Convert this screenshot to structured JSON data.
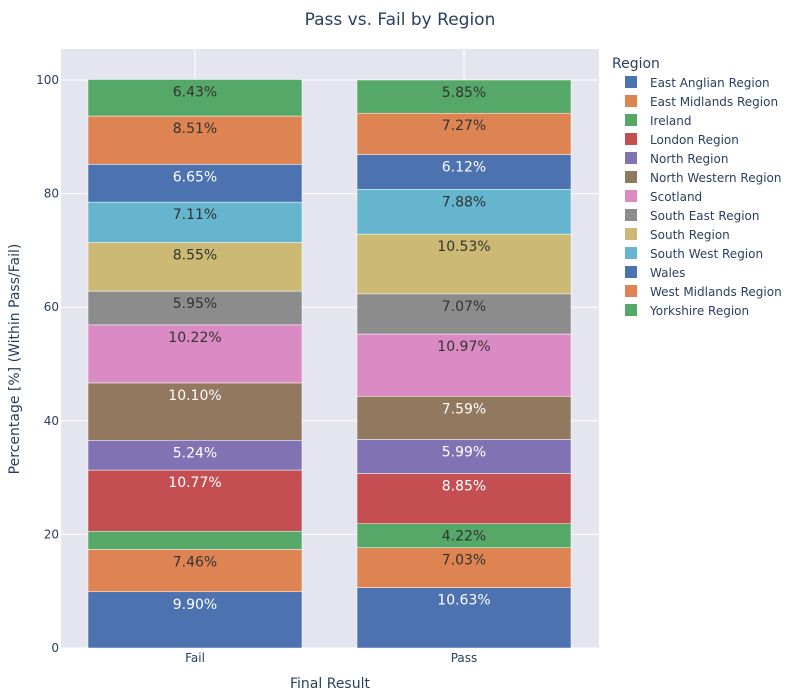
{
  "chart_data": {
    "type": "bar",
    "stacked": true,
    "title": "Pass vs. Fail by Region",
    "xlabel": "Final Result",
    "ylabel": "Percentage [%] (Within Pass/Fail)",
    "categories": [
      "Fail",
      "Pass"
    ],
    "ylim": [
      0,
      100
    ],
    "yticks": [
      0,
      20,
      40,
      60,
      80,
      100
    ],
    "grid": true,
    "legend_title": "Region",
    "legend_position": "right",
    "series": [
      {
        "name": "East Anglian Region",
        "color": "#4c72b0",
        "values": [
          9.9,
          10.63
        ],
        "labels": [
          "9.90%",
          "10.63%"
        ],
        "label_color": "#ffffff"
      },
      {
        "name": "East Midlands Region",
        "color": "#dd8452",
        "values": [
          7.46,
          7.03
        ],
        "labels": [
          "7.46%",
          "7.03%"
        ],
        "label_color": "#333333"
      },
      {
        "name": "Ireland",
        "color": "#55a868",
        "values": [
          3.2,
          4.22
        ],
        "labels": [
          "",
          "4.22%"
        ],
        "label_color": "#333333"
      },
      {
        "name": "London Region",
        "color": "#c44e52",
        "values": [
          10.77,
          8.85
        ],
        "labels": [
          "10.77%",
          "8.85%"
        ],
        "label_color": "#ffffff"
      },
      {
        "name": "North Region",
        "color": "#8172b3",
        "values": [
          5.24,
          5.99
        ],
        "labels": [
          "5.24%",
          "5.99%"
        ],
        "label_color": "#ffffff"
      },
      {
        "name": "North Western Region",
        "color": "#937860",
        "values": [
          10.1,
          7.59
        ],
        "labels": [
          "10.10%",
          "7.59%"
        ],
        "label_color": "#ffffff"
      },
      {
        "name": "Scotland",
        "color": "#da8bc3",
        "values": [
          10.22,
          10.97
        ],
        "labels": [
          "10.22%",
          "10.97%"
        ],
        "label_color": "#333333"
      },
      {
        "name": "South East Region",
        "color": "#8c8c8c",
        "values": [
          5.95,
          7.07
        ],
        "labels": [
          "5.95%",
          "7.07%"
        ],
        "label_color": "#333333"
      },
      {
        "name": "South Region",
        "color": "#ccb974",
        "values": [
          8.55,
          10.53
        ],
        "labels": [
          "8.55%",
          "10.53%"
        ],
        "label_color": "#333333"
      },
      {
        "name": "South West Region",
        "color": "#64b5cd",
        "values": [
          7.11,
          7.88
        ],
        "labels": [
          "7.11%",
          "7.88%"
        ],
        "label_color": "#333333"
      },
      {
        "name": "Wales",
        "color": "#4c72b0",
        "values": [
          6.65,
          6.12
        ],
        "labels": [
          "6.65%",
          "6.12%"
        ],
        "label_color": "#ffffff"
      },
      {
        "name": "West Midlands Region",
        "color": "#dd8452",
        "values": [
          8.51,
          7.27
        ],
        "labels": [
          "8.51%",
          "7.27%"
        ],
        "label_color": "#333333"
      },
      {
        "name": "Yorkshire Region",
        "color": "#55a868",
        "values": [
          6.43,
          5.85
        ],
        "labels": [
          "6.43%",
          "5.85%"
        ],
        "label_color": "#333333"
      }
    ]
  },
  "colors": {
    "plot_background": "#e5e5f0",
    "grid": "#ffffff",
    "text": "#2a3f5f"
  }
}
